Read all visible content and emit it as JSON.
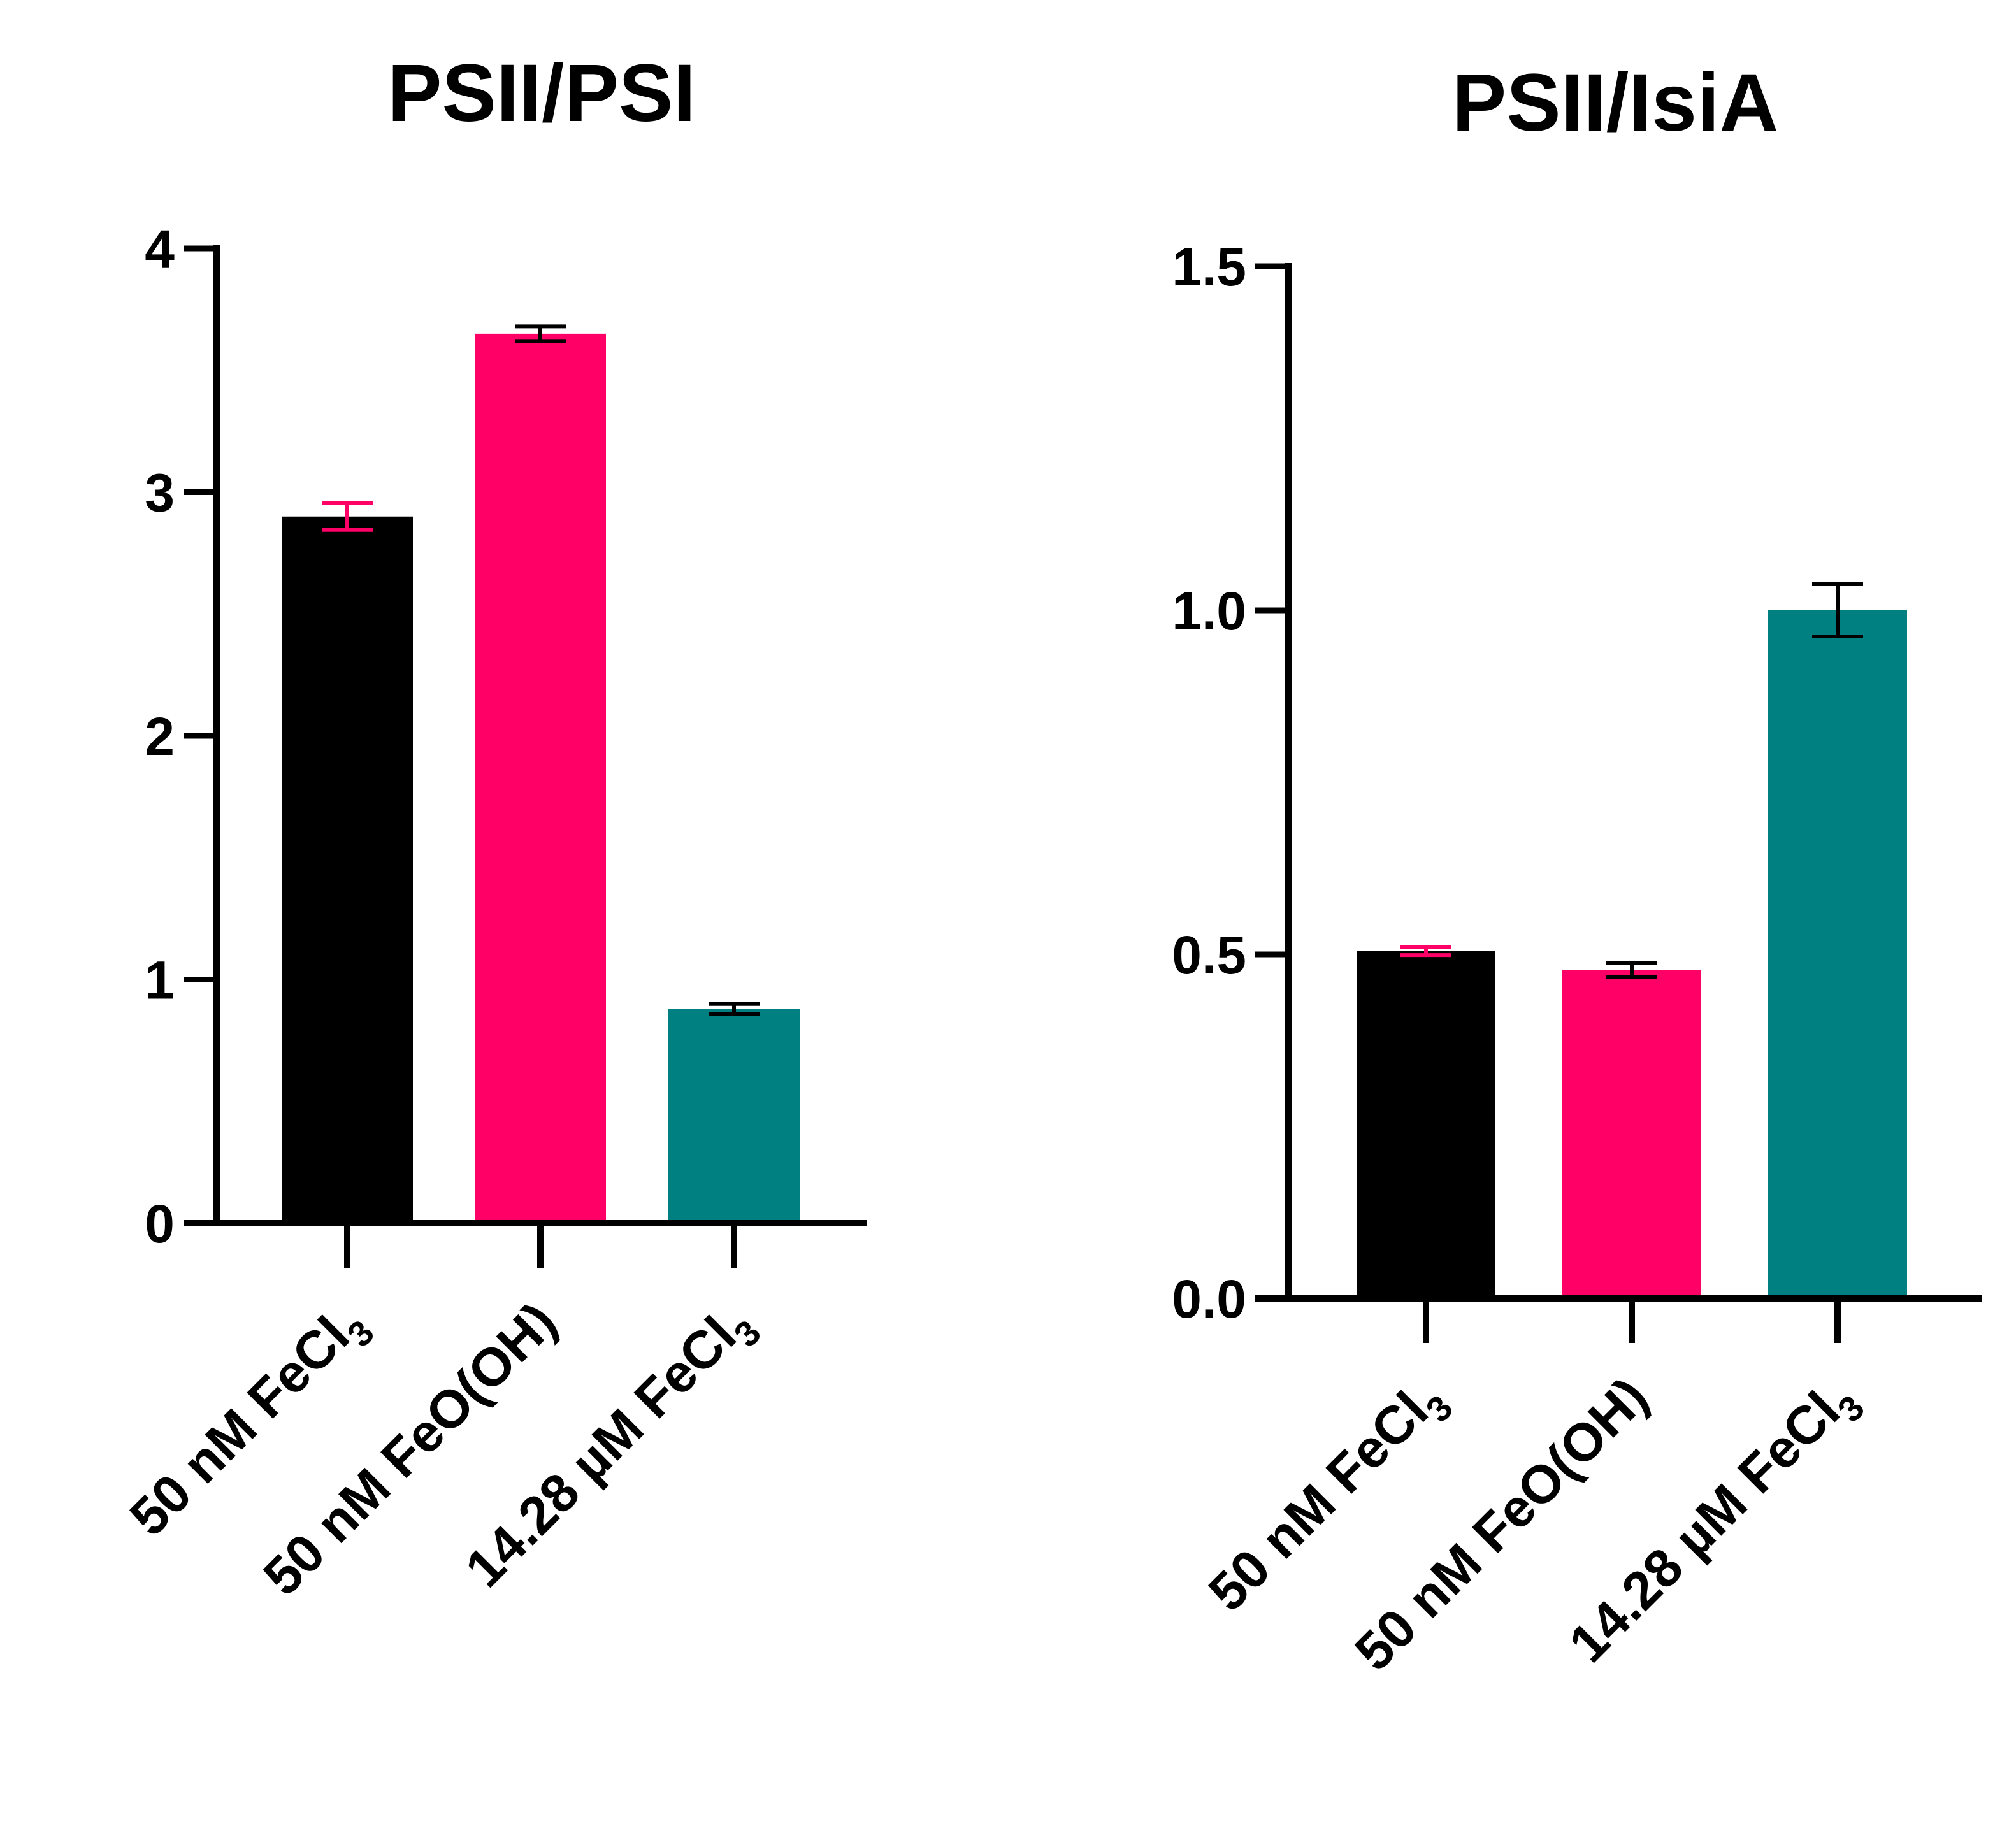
{
  "colors": {
    "black": "#000000",
    "pink": "#ff0066",
    "teal": "#008080"
  },
  "chart_data": [
    {
      "type": "bar",
      "title": "PSII/PSI",
      "xlabel": "",
      "ylabel": "",
      "ylim": [
        0,
        4
      ],
      "yticks": [
        0,
        1,
        2,
        3,
        4
      ],
      "ytick_labels": [
        "0",
        "1",
        "2",
        "3",
        "4"
      ],
      "categories": [
        {
          "label": "50 nM FeCl",
          "subscript": "3"
        },
        {
          "label": "50 nM FeO(OH)",
          "subscript": ""
        },
        {
          "label": "14.28 µM FeCl",
          "subscript": "3"
        }
      ],
      "values": [
        2.9,
        3.65,
        0.88
      ],
      "errors": [
        0.055,
        0.03,
        0.02
      ],
      "bar_colors": [
        "#000000",
        "#ff0066",
        "#008080"
      ],
      "error_colors": [
        "#ff0066",
        "#000000",
        "#000000"
      ]
    },
    {
      "type": "bar",
      "title": "PSII/IsiA",
      "xlabel": "",
      "ylabel": "",
      "ylim": [
        0,
        1.5
      ],
      "yticks": [
        0,
        0.5,
        1.0,
        1.5
      ],
      "ytick_labels": [
        "0.0",
        "0.5",
        "1.0",
        "1.5"
      ],
      "categories": [
        {
          "label": "50 nM FeCl",
          "subscript": "3"
        },
        {
          "label": "50 nM FeO(OH)",
          "subscript": ""
        },
        {
          "label": "14.28 µM FeCl",
          "subscript": "3"
        }
      ],
      "values": [
        0.505,
        0.477,
        1.0
      ],
      "errors": [
        0.006,
        0.01,
        0.038
      ],
      "bar_colors": [
        "#000000",
        "#ff0066",
        "#008080"
      ],
      "error_colors": [
        "#ff0066",
        "#000000",
        "#000000"
      ]
    }
  ]
}
